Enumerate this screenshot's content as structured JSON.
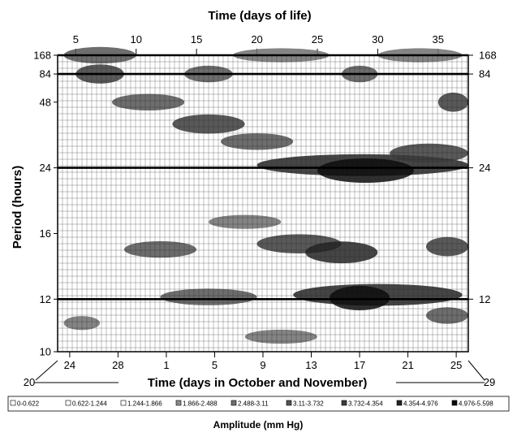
{
  "chart_data": {
    "type": "heatmap",
    "title": "Time (days of life)",
    "xlabel_top": "Time (days of life)",
    "xlabel_bottom": "Time (days in October and November)",
    "ylabel": "Period (hours)",
    "legend_title": "Amplitude (mm Hg)",
    "top_ticks": [
      "5",
      "10",
      "15",
      "20",
      "25",
      "30",
      "35"
    ],
    "top_tick_days": [
      5,
      10,
      15,
      20,
      25,
      30,
      35
    ],
    "x_range_days_of_life": [
      3.5,
      37.5
    ],
    "bottom_ticks": [
      "24",
      "28",
      "1",
      "5",
      "9",
      "13",
      "17",
      "21",
      "25"
    ],
    "bottom_tick_days": [
      4.5,
      8.5,
      12.5,
      16.5,
      20.5,
      24.5,
      28.5,
      32.5,
      36.5
    ],
    "bottom_corner_left": "20",
    "bottom_corner_right": "29",
    "y_ticks": [
      "168",
      "84",
      "48",
      "24",
      "16",
      "12",
      "10"
    ],
    "y_tick_values": [
      168,
      84,
      48,
      24,
      16,
      12,
      10
    ],
    "y_range": [
      10,
      168
    ],
    "y_scale": "reciprocal",
    "highlighted_periods": [
      168,
      84,
      24,
      12
    ],
    "legend_classes": [
      {
        "label": "0-0.622",
        "color": "#ffffff"
      },
      {
        "label": "0.622-1.244",
        "color": "#ffffff"
      },
      {
        "label": "1.244-1.866",
        "color": "#ffffff"
      },
      {
        "label": "1.866-2.488",
        "color": "#8c8c8c"
      },
      {
        "label": "2.488-3.11",
        "color": "#6e6e6e"
      },
      {
        "label": "3.11-3.732",
        "color": "#545454"
      },
      {
        "label": "3.732-4.354",
        "color": "#3c3c3c"
      },
      {
        "label": "4.354-4.976",
        "color": "#242424"
      },
      {
        "label": "4.976-5.598",
        "color": "#0c0c0c"
      }
    ],
    "bands": [
      {
        "x": [
          4,
          10
        ],
        "period": 168,
        "level": 5
      },
      {
        "x": [
          18,
          26
        ],
        "period": 168,
        "level": 4
      },
      {
        "x": [
          30,
          37
        ],
        "period": 168,
        "level": 4
      },
      {
        "x": [
          5,
          9
        ],
        "period": 84,
        "level": 6
      },
      {
        "x": [
          14,
          18
        ],
        "period": 84,
        "level": 5
      },
      {
        "x": [
          27,
          30
        ],
        "period": 84,
        "level": 5
      },
      {
        "x": [
          8,
          14
        ],
        "period": 48,
        "level": 5
      },
      {
        "x": [
          13,
          19
        ],
        "period": 36,
        "level": 6
      },
      {
        "x": [
          17,
          23
        ],
        "period": 30,
        "level": 5
      },
      {
        "x": [
          35,
          37.5
        ],
        "period": 48,
        "level": 6
      },
      {
        "x": [
          20,
          37.5
        ],
        "period": 24.5,
        "level": 7
      },
      {
        "x": [
          25,
          33
        ],
        "period": 23.5,
        "level": 8
      },
      {
        "x": [
          31,
          37.5
        ],
        "period": 27,
        "level": 6
      },
      {
        "x": [
          16,
          22
        ],
        "period": 17,
        "level": 4
      },
      {
        "x": [
          9,
          15
        ],
        "period": 14.8,
        "level": 5
      },
      {
        "x": [
          20,
          27
        ],
        "period": 15.2,
        "level": 6
      },
      {
        "x": [
          24,
          30
        ],
        "period": 14.6,
        "level": 7
      },
      {
        "x": [
          34,
          37.5
        ],
        "period": 15,
        "level": 6
      },
      {
        "x": [
          12,
          20
        ],
        "period": 12.1,
        "level": 5
      },
      {
        "x": [
          23,
          37
        ],
        "period": 12.2,
        "level": 7
      },
      {
        "x": [
          26,
          31
        ],
        "period": 12.05,
        "level": 8
      },
      {
        "x": [
          34,
          37.5
        ],
        "period": 11.3,
        "level": 5
      },
      {
        "x": [
          4,
          7
        ],
        "period": 11,
        "level": 4
      },
      {
        "x": [
          19,
          25
        ],
        "period": 10.5,
        "level": 4
      }
    ]
  }
}
